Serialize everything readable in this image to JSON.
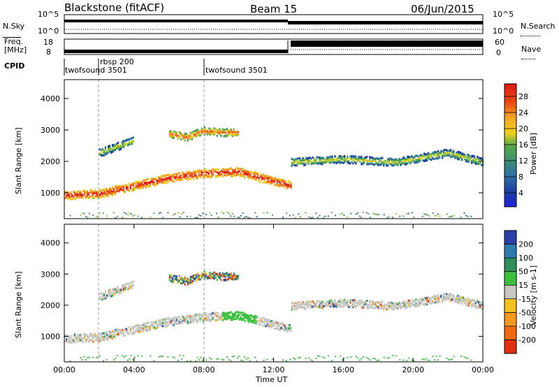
{
  "header": {
    "site": "Blackstone (fitACF)",
    "beam": "Beam 15",
    "date": "06/Jun/2015"
  },
  "top_panels": {
    "nsky_label": "N.Sky",
    "nsearch_label": "N.Search",
    "freq_label_line1": "Freq.",
    "freq_label_line2": "[MHz]",
    "nave_label": "Nave",
    "cpid_label": "CPID",
    "nsky_ticks": [
      "10^5",
      "10^0"
    ],
    "freq_ticks": [
      "18",
      "8"
    ],
    "nave_ticks": [
      "60",
      "0"
    ],
    "cpid_segments": [
      {
        "name": "twofsound 3501",
        "start_h": 0
      },
      {
        "name": "rbsp 200",
        "start_h": 2
      },
      {
        "name": "twofsound 3501",
        "start_h": 8
      }
    ]
  },
  "chart_data": [
    {
      "type": "heatmap",
      "panel": "power",
      "ylabel": "Slant Range [km]",
      "ylim": [
        180,
        4600
      ],
      "xlim": [
        0,
        24
      ],
      "yticks": [
        "1000",
        "2000",
        "3000",
        "4000"
      ],
      "colorbar": {
        "label": "Power [dB]",
        "ticks": [
          "4",
          "8",
          "12",
          "16",
          "20",
          "24",
          "28"
        ],
        "colors": [
          "#1f1fe0",
          "#1c3f9e",
          "#2f6fa8",
          "#3e8f6e",
          "#5aa844",
          "#9bc93a",
          "#f0d21e",
          "#f5a623",
          "#f07a1a",
          "#e84a12",
          "#e01818"
        ]
      },
      "bands": [
        {
          "t": [
            0,
            2,
            4,
            6,
            8,
            10,
            12,
            13
          ],
          "r": [
            950,
            1000,
            1250,
            1500,
            1650,
            1700,
            1400,
            1250
          ],
          "level": "high"
        },
        {
          "t": [
            6,
            7,
            8,
            9,
            10
          ],
          "r": [
            2900,
            2800,
            3000,
            2950,
            2950
          ],
          "level": "mid"
        },
        {
          "t": [
            13,
            16,
            19,
            22,
            24
          ],
          "r": [
            2000,
            2100,
            2000,
            2300,
            2000
          ],
          "level": "low"
        },
        {
          "t": [
            2,
            3,
            4
          ],
          "r": [
            2300,
            2500,
            2700
          ],
          "level": "low"
        }
      ]
    },
    {
      "type": "heatmap",
      "panel": "velocity",
      "ylabel": "Slant Range [km]",
      "xlabel": "Time UT",
      "ylim": [
        180,
        4600
      ],
      "xlim": [
        0,
        24
      ],
      "yticks": [
        "1000",
        "2000",
        "3000",
        "4000"
      ],
      "xticks": [
        "00:00",
        "04:00",
        "08:00",
        "12:00",
        "16:00",
        "20:00",
        "00:00"
      ],
      "colorbar": {
        "label": "Velocity [m s-1]",
        "ticks": [
          "200",
          "100",
          "50",
          "15",
          "-15",
          "-50",
          "-100",
          "-200"
        ],
        "colors": [
          "#2b3fa8",
          "#2f7ab0",
          "#2e8f5a",
          "#3cbf3c",
          "#c8c8c0",
          "#f5c020",
          "#f59a20",
          "#f06a10",
          "#e03010"
        ]
      }
    }
  ]
}
